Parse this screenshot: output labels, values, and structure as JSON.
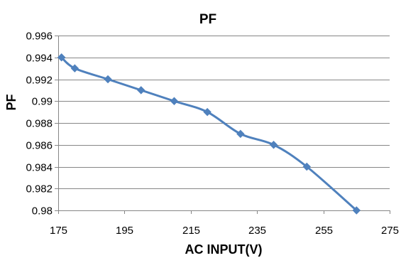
{
  "chart_data": {
    "type": "line",
    "title": "PF",
    "xlabel": "AC INPUT(V)",
    "ylabel": "PF",
    "xlim": [
      175,
      275
    ],
    "ylim": [
      0.98,
      0.996
    ],
    "xticks": [
      "175",
      "195",
      "215",
      "235",
      "255",
      "275"
    ],
    "yticks": [
      "0.98",
      "0.982",
      "0.984",
      "0.986",
      "0.988",
      "0.99",
      "0.992",
      "0.994",
      "0.996"
    ],
    "grid": true,
    "series": [
      {
        "color": "#4f81bd",
        "x": [
          176,
          180,
          190,
          200,
          210,
          220,
          230,
          240,
          250,
          265
        ],
        "y": [
          0.994,
          0.993,
          0.992,
          0.991,
          0.99,
          0.989,
          0.987,
          0.986,
          0.984,
          0.98
        ]
      }
    ]
  }
}
